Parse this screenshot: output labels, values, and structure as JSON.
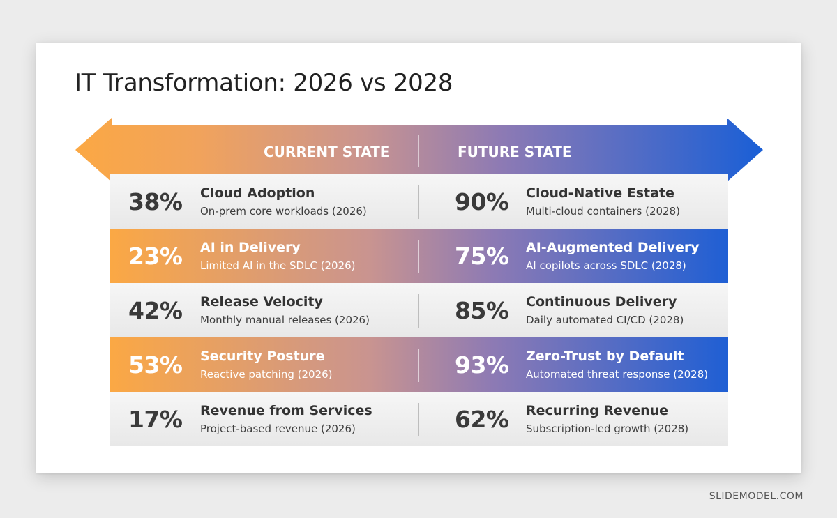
{
  "slide": {
    "title": "IT Transformation: 2026 vs 2028"
  },
  "arrow": {
    "current_label": "CURRENT STATE",
    "future_label": "FUTURE STATE",
    "colors": {
      "left": "#fba844",
      "middle": "#b08aa2",
      "right": "#1a5fd6"
    }
  },
  "rows": [
    {
      "style": "light",
      "current": {
        "pct": "38%",
        "name": "Cloud Adoption",
        "desc": "On-prem core workloads (2026)"
      },
      "future": {
        "pct": "90%",
        "name": "Cloud-Native Estate",
        "desc": "Multi-cloud containers (2028)"
      }
    },
    {
      "style": "highlight",
      "current": {
        "pct": "23%",
        "name": "AI in Delivery",
        "desc": "Limited AI in the SDLC (2026)"
      },
      "future": {
        "pct": "75%",
        "name": "AI-Augmented Delivery",
        "desc": "AI copilots across SDLC (2028)"
      }
    },
    {
      "style": "light",
      "current": {
        "pct": "42%",
        "name": "Release Velocity",
        "desc": "Monthly manual releases (2026)"
      },
      "future": {
        "pct": "85%",
        "name": "Continuous Delivery",
        "desc": "Daily automated CI/CD (2028)"
      }
    },
    {
      "style": "highlight",
      "current": {
        "pct": "53%",
        "name": "Security Posture",
        "desc": "Reactive patching (2026)"
      },
      "future": {
        "pct": "93%",
        "name": "Zero-Trust by Default",
        "desc": "Automated threat response (2028)"
      }
    },
    {
      "style": "light",
      "current": {
        "pct": "17%",
        "name": "Revenue from Services",
        "desc": "Project-based revenue (2026)"
      },
      "future": {
        "pct": "62%",
        "name": "Recurring Revenue",
        "desc": "Subscription-led growth (2028)"
      }
    }
  ],
  "watermark": "SLIDEMODEL.COM"
}
